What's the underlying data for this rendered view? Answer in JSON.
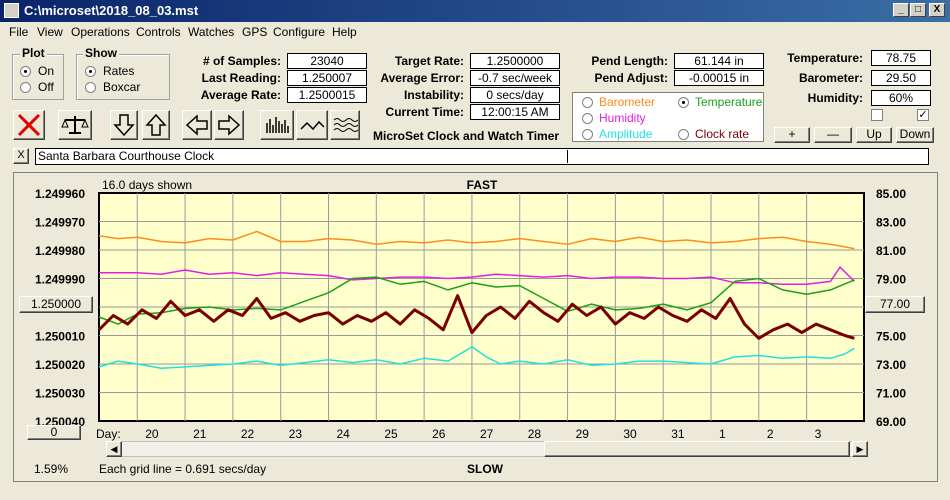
{
  "window": {
    "title": "C:\\microset\\2018_08_03.mst",
    "min": "_",
    "max": "□",
    "close": "X"
  },
  "menu": [
    "File",
    "View",
    "Operations",
    "Controls",
    "Watches",
    "GPS",
    "Configure",
    "Help"
  ],
  "plot_group": {
    "title": "Plot",
    "on": "On",
    "off": "Off",
    "selected": "On"
  },
  "show_group": {
    "title": "Show",
    "rates": "Rates",
    "boxcar": "Boxcar",
    "selected": "Rates"
  },
  "stats": {
    "samples_label": "# of Samples:",
    "samples": "23040",
    "last_label": "Last Reading:",
    "last": "1.250007",
    "avg_label": "Average Rate:",
    "avg": "1.2500015"
  },
  "rates": {
    "target_label": "Target Rate:",
    "target": "1.2500000",
    "avgerr_label": "Average Error:",
    "avgerr": "-0.7 sec/week",
    "instab_label": "Instability:",
    "instab": "0 secs/day",
    "time_label": "Current Time:",
    "time": "12:00:15 AM",
    "app_name": "MicroSet Clock and Watch Timer"
  },
  "pend": {
    "length_label": "Pend Length:",
    "length": "61.144 in",
    "adjust_label": "Pend Adjust:",
    "adjust": "-0.00015 in"
  },
  "series_sel": {
    "barometer": "Barometer",
    "temperature": "Temperature",
    "humidity": "Humidity",
    "amplitude": "Amplitude",
    "clockrate": "Clock rate",
    "selected": "Temperature"
  },
  "env": {
    "temp_label": "Temperature:",
    "temp": "78.75",
    "baro_label": "Barometer:",
    "baro": "29.50",
    "hum_label": "Humidity:",
    "hum": "60%",
    "check2": "✓"
  },
  "env_buttons": {
    "plus": "+",
    "minus": "—",
    "up": "Up",
    "down": "Down"
  },
  "watch": {
    "close": "X",
    "name": "Santa Barbara Courthouse Clock"
  },
  "colors": {
    "plot_bg": "#ffffcc",
    "grid": "#9a9a9a",
    "barometer": "#ff8c1a",
    "humidity": "#e020e0",
    "temperature": "#1aa01a",
    "clock": "#7a0000",
    "amplitude": "#22e0e0"
  },
  "chart_data": {
    "type": "line",
    "title": "FAST",
    "bottom_label": "SLOW",
    "days_shown": "16.0 days shown",
    "grid_note": "Each grid line = 0.691 secs/day",
    "percent": "1.59%",
    "day_label": "Day:",
    "x_ticks": [
      "20",
      "21",
      "22",
      "23",
      "24",
      "25",
      "26",
      "27",
      "28",
      "29",
      "30",
      "31",
      "1",
      "2",
      "3"
    ],
    "left_axis": {
      "ticks": [
        "1.249960",
        "1.249970",
        "1.249980",
        "1.249990",
        "1.250000",
        "1.250010",
        "1.250020",
        "1.250030",
        "1.250040"
      ],
      "range": [
        1.24996,
        1.25004
      ],
      "inverted": true
    },
    "right_axis": {
      "ticks": [
        "85.00",
        "83.00",
        "81.00",
        "79.00",
        "77.00",
        "75.00",
        "73.00",
        "71.00",
        "69.00"
      ],
      "range": [
        69,
        85
      ]
    },
    "left_center_btn": "1.250000",
    "right_center_btn": "77.00",
    "left_bottom_btn": "0",
    "x_range": [
      19.2,
      35.2
    ],
    "series": [
      {
        "name": "Barometer",
        "color": "#ff8c1a",
        "points": [
          [
            19.2,
            82.0
          ],
          [
            19.6,
            81.8
          ],
          [
            20,
            81.9
          ],
          [
            20.5,
            81.6
          ],
          [
            21,
            81.5
          ],
          [
            21.5,
            81.8
          ],
          [
            22,
            81.7
          ],
          [
            22.5,
            82.3
          ],
          [
            23,
            81.6
          ],
          [
            23.5,
            81.6
          ],
          [
            24,
            81.8
          ],
          [
            24.5,
            81.7
          ],
          [
            25,
            81.4
          ],
          [
            25.5,
            81.6
          ],
          [
            26,
            81.5
          ],
          [
            26.5,
            81.7
          ],
          [
            27,
            81.5
          ],
          [
            27.5,
            81.6
          ],
          [
            28,
            81.8
          ],
          [
            28.5,
            81.6
          ],
          [
            29,
            81.4
          ],
          [
            29.5,
            81.8
          ],
          [
            30,
            81.6
          ],
          [
            30.5,
            81.9
          ],
          [
            31,
            81.6
          ],
          [
            31.5,
            81.7
          ],
          [
            32,
            81.5
          ],
          [
            32.5,
            81.6
          ],
          [
            33,
            81.8
          ],
          [
            33.5,
            81.9
          ],
          [
            34,
            81.6
          ],
          [
            34.5,
            81.4
          ],
          [
            35,
            81.1
          ]
        ]
      },
      {
        "name": "Humidity",
        "color": "#e020e0",
        "points": [
          [
            19.2,
            79.4
          ],
          [
            20,
            79.4
          ],
          [
            20.5,
            79.3
          ],
          [
            21,
            79.6
          ],
          [
            21.5,
            79.3
          ],
          [
            22,
            79.4
          ],
          [
            22.5,
            79.2
          ],
          [
            23,
            79.4
          ],
          [
            23.5,
            79.3
          ],
          [
            24,
            79.2
          ],
          [
            24.5,
            78.9
          ],
          [
            25,
            79.0
          ],
          [
            25.5,
            79.1
          ],
          [
            26,
            79.1
          ],
          [
            26.5,
            79.0
          ],
          [
            27,
            79.1
          ],
          [
            27.5,
            79.3
          ],
          [
            28,
            79.2
          ],
          [
            28.5,
            79.1
          ],
          [
            29,
            79.2
          ],
          [
            29.5,
            79.0
          ],
          [
            30,
            79.1
          ],
          [
            30.5,
            79.1
          ],
          [
            31,
            79.0
          ],
          [
            31.5,
            79.0
          ],
          [
            32,
            79.1
          ],
          [
            32.5,
            78.7
          ],
          [
            33,
            78.7
          ],
          [
            33.5,
            78.6
          ],
          [
            34,
            78.6
          ],
          [
            34.5,
            78.8
          ],
          [
            34.7,
            79.8
          ],
          [
            35,
            78.8
          ]
        ]
      },
      {
        "name": "Temperature",
        "color": "#1aa01a",
        "points": [
          [
            19.2,
            76.3
          ],
          [
            19.6,
            75.8
          ],
          [
            20,
            76.5
          ],
          [
            20.5,
            76.6
          ],
          [
            21,
            76.9
          ],
          [
            21.5,
            77.0
          ],
          [
            22,
            76.8
          ],
          [
            22.5,
            76.9
          ],
          [
            23,
            76.8
          ],
          [
            23.5,
            77.4
          ],
          [
            24,
            78.0
          ],
          [
            24.5,
            79.0
          ],
          [
            25,
            79.1
          ],
          [
            25.5,
            78.6
          ],
          [
            26,
            78.8
          ],
          [
            26.5,
            78.2
          ],
          [
            27,
            78.7
          ],
          [
            27.5,
            78.4
          ],
          [
            28,
            78.5
          ],
          [
            28.5,
            77.6
          ],
          [
            29,
            76.7
          ],
          [
            29.5,
            77.2
          ],
          [
            30,
            76.8
          ],
          [
            30.5,
            76.9
          ],
          [
            31,
            77.2
          ],
          [
            31.5,
            76.8
          ],
          [
            32,
            77.3
          ],
          [
            32.5,
            78.8
          ],
          [
            33,
            79.0
          ],
          [
            33.5,
            78.2
          ],
          [
            34,
            77.9
          ],
          [
            34.5,
            78.2
          ],
          [
            35,
            78.9
          ]
        ]
      },
      {
        "name": "Clock rate",
        "color": "#7a0000",
        "points": [
          [
            19.2,
            1.250008
          ],
          [
            19.5,
            1.250003
          ],
          [
            19.8,
            1.250006
          ],
          [
            20.1,
            1.250001
          ],
          [
            20.4,
            1.250004
          ],
          [
            20.7,
            1.249998
          ],
          [
            21,
            1.250003
          ],
          [
            21.3,
            1.250001
          ],
          [
            21.6,
            1.250005
          ],
          [
            21.9,
            1.250001
          ],
          [
            22.2,
            1.250003
          ],
          [
            22.5,
            1.249997
          ],
          [
            22.8,
            1.250004
          ],
          [
            23.1,
            1.250002
          ],
          [
            23.4,
            1.250005
          ],
          [
            23.7,
            1.250003
          ],
          [
            24,
            1.250002
          ],
          [
            24.3,
            1.250006
          ],
          [
            24.6,
            1.250003
          ],
          [
            24.9,
            1.250005
          ],
          [
            25.2,
            1.250002
          ],
          [
            25.5,
            1.250006
          ],
          [
            25.8,
            1.250001
          ],
          [
            26.1,
            1.250004
          ],
          [
            26.4,
            1.250008
          ],
          [
            26.7,
            1.249996
          ],
          [
            27,
            1.250009
          ],
          [
            27.3,
            1.250003
          ],
          [
            27.6,
            1.25
          ],
          [
            27.9,
            1.250004
          ],
          [
            28.2,
            1.249998
          ],
          [
            28.5,
            1.250002
          ],
          [
            28.8,
            1.250005
          ],
          [
            29.1,
            1.249999
          ],
          [
            29.4,
            1.250003
          ],
          [
            29.7,
            1.25
          ],
          [
            30,
            1.250006
          ],
          [
            30.3,
            1.250002
          ],
          [
            30.6,
            1.250004
          ],
          [
            30.9,
            1.25
          ],
          [
            31.2,
            1.250003
          ],
          [
            31.5,
            1.250005
          ],
          [
            31.8,
            1.250001
          ],
          [
            32.1,
            1.250004
          ],
          [
            32.4,
            1.249997
          ],
          [
            32.7,
            1.250006
          ],
          [
            33,
            1.250011
          ],
          [
            33.3,
            1.250008
          ],
          [
            33.6,
            1.250006
          ],
          [
            33.9,
            1.250009
          ],
          [
            34.2,
            1.250006
          ],
          [
            34.5,
            1.250008
          ],
          [
            34.8,
            1.25001
          ],
          [
            35,
            1.250011
          ]
        ]
      },
      {
        "name": "Amplitude",
        "color": "#22e0e0",
        "points": [
          [
            19.2,
            72.8
          ],
          [
            19.6,
            73.2
          ],
          [
            20,
            73.0
          ],
          [
            20.5,
            72.7
          ],
          [
            21,
            72.8
          ],
          [
            21.5,
            72.9
          ],
          [
            22,
            73.0
          ],
          [
            22.5,
            73.2
          ],
          [
            23,
            72.9
          ],
          [
            23.5,
            73.1
          ],
          [
            24,
            73.3
          ],
          [
            24.5,
            73.1
          ],
          [
            25,
            73.3
          ],
          [
            25.5,
            73.0
          ],
          [
            26,
            73.4
          ],
          [
            26.5,
            73.2
          ],
          [
            27,
            74.2
          ],
          [
            27.3,
            73.5
          ],
          [
            27.6,
            73.0
          ],
          [
            28,
            73.2
          ],
          [
            28.5,
            73.0
          ],
          [
            29,
            73.3
          ],
          [
            29.5,
            72.9
          ],
          [
            30,
            73.0
          ],
          [
            30.5,
            73.2
          ],
          [
            31,
            73.2
          ],
          [
            31.5,
            73.1
          ],
          [
            32,
            73.0
          ],
          [
            32.5,
            73.5
          ],
          [
            33,
            73.6
          ],
          [
            33.5,
            73.4
          ],
          [
            34,
            73.5
          ],
          [
            34.5,
            73.4
          ],
          [
            34.8,
            73.7
          ],
          [
            35,
            74.1
          ]
        ]
      }
    ]
  }
}
